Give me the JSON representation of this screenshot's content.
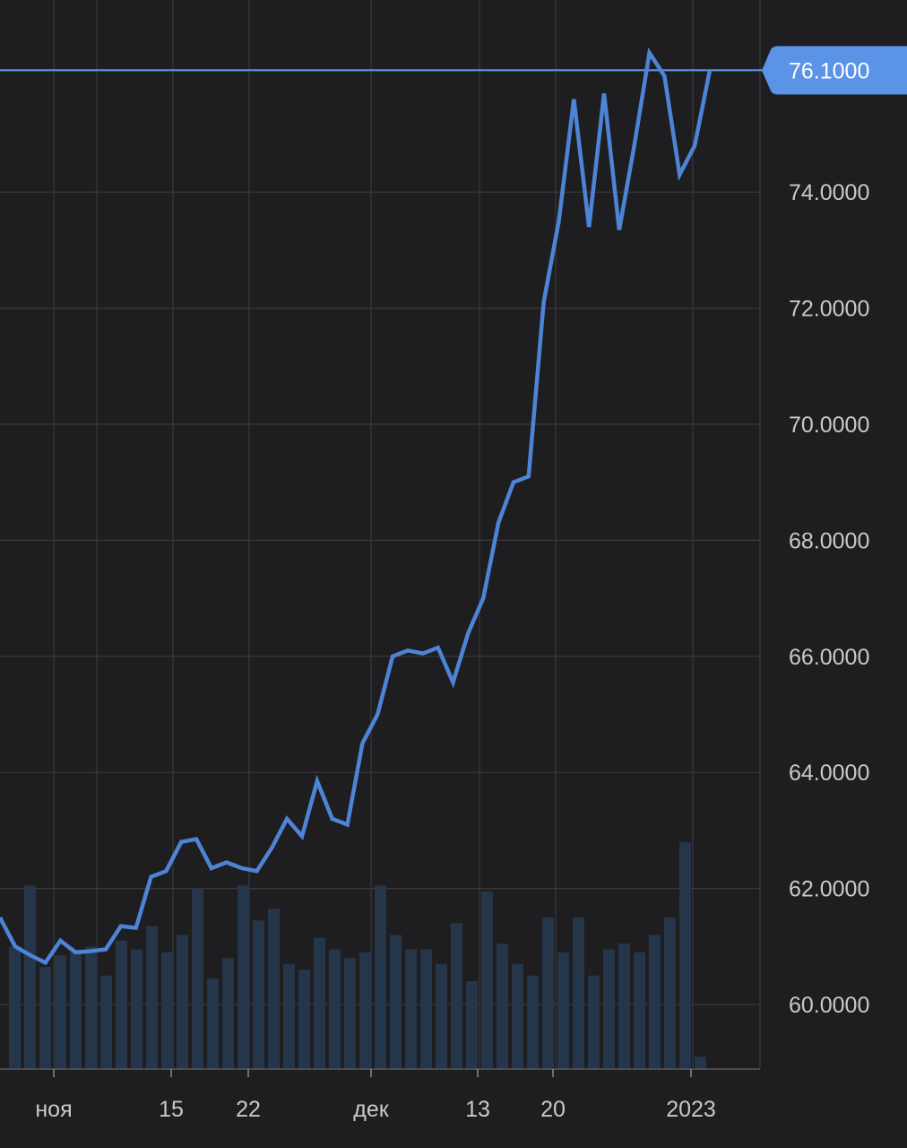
{
  "chart_data": {
    "type": "line",
    "title": "",
    "xlabel": "",
    "ylabel": "",
    "ylim": [
      59.0,
      77.0
    ],
    "grid": true,
    "x_tick_labels": [
      "ноя",
      "15",
      "22",
      "дек",
      "13",
      "20",
      "2023"
    ],
    "y_tick_labels": [
      "60.0000",
      "62.0000",
      "64.0000",
      "66.0000",
      "68.0000",
      "70.0000",
      "72.0000",
      "74.0000"
    ],
    "y_ticks": [
      60,
      62,
      64,
      66,
      68,
      70,
      72,
      74
    ],
    "current_value": 76.1,
    "current_value_label": "76.1000",
    "colors": {
      "background": "#1e1e20",
      "line": "#4d84d6",
      "badge": "#5b93e6",
      "grid": "#3a3a3d",
      "volume": "#25354a"
    },
    "series": [
      {
        "values": [
          61.5,
          61.0,
          60.85,
          60.72,
          61.1,
          60.9,
          60.92,
          60.95,
          61.35,
          61.32,
          62.2,
          62.3,
          62.8,
          62.85,
          62.35,
          62.45,
          62.35,
          62.3,
          62.7,
          63.2,
          62.9,
          63.85,
          63.2,
          63.1,
          64.5,
          65.0,
          66.0,
          66.1,
          66.05,
          66.15,
          65.55,
          66.4,
          67.0,
          68.3,
          69.0,
          69.1,
          72.1,
          73.5,
          75.6,
          73.4,
          75.7,
          73.35,
          74.8,
          76.4,
          76.0,
          74.3,
          74.8,
          76.1
        ]
      }
    ],
    "volume": [
      61.0,
      62.05,
      60.65,
      60.85,
      60.9,
      61.0,
      60.5,
      61.1,
      60.95,
      61.35,
      60.9,
      61.2,
      62.0,
      60.45,
      60.8,
      62.05,
      61.45,
      61.65,
      60.7,
      60.6,
      61.15,
      60.95,
      60.8,
      60.9,
      62.05,
      61.2,
      60.95,
      60.95,
      60.7,
      61.4,
      60.4,
      61.95,
      61.05,
      60.7,
      60.5,
      61.5,
      60.9,
      61.5,
      60.5,
      60.95,
      61.05,
      60.9,
      61.2,
      61.5,
      62.8,
      59.1
    ]
  }
}
